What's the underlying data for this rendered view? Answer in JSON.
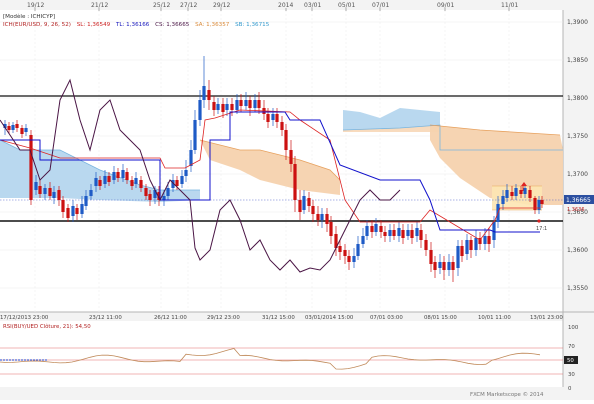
{
  "top_axis": {
    "labels": [
      "19/12",
      "21/12",
      "25/12",
      "27/12",
      "29/12",
      "2014",
      "03/01",
      "05/01",
      "07/01",
      "09/01",
      "11/01"
    ]
  },
  "legend": {
    "line1": "[Modèle : ICHICYP]",
    "ichi_label": "ICH(EUR/USD, 9, 26, 52)",
    "sl": "SL: 1,36549",
    "tl": "TL: 1,36166",
    "cs": "CS: 1,36665",
    "sa": "SA: 1,36357",
    "sb": "SB: 1,36715"
  },
  "price_axis": {
    "labels": [
      "1,3900",
      "1,3850",
      "1,3800",
      "1,3750",
      "1,3700",
      "1,3650",
      "1,3600",
      "1,3550"
    ],
    "current": "1,36665",
    "flag": "1,3636"
  },
  "bottom_axis": {
    "labels": [
      "17/12/2013 23:00",
      "23/12 11:00",
      "26/12 11:00",
      "29/12 23:00",
      "31/12 15:00",
      "03/01/2014 15:00",
      "07/01 03:00",
      "08/01 15:00",
      "10/01 11:00",
      "13/01 23:00"
    ]
  },
  "annotation": "17:1",
  "rsi": {
    "label": "RSI(BUY/UED Clôture, 21): 54,50",
    "levels": [
      "100",
      "70",
      "50",
      "30",
      "0"
    ],
    "current": "50"
  },
  "watermark": "FXCM Marketscope © 2014",
  "colors": {
    "bull": "#1e5bc6",
    "bear": "#cc1111",
    "tenkan": "#dd2222",
    "kijun": "#1111cc",
    "chikou": "#4a1545",
    "span_a_cloud": "#b5d6ee",
    "span_b_cloud": "#f6d2ae",
    "rsi_line": "#c08a5a"
  }
}
